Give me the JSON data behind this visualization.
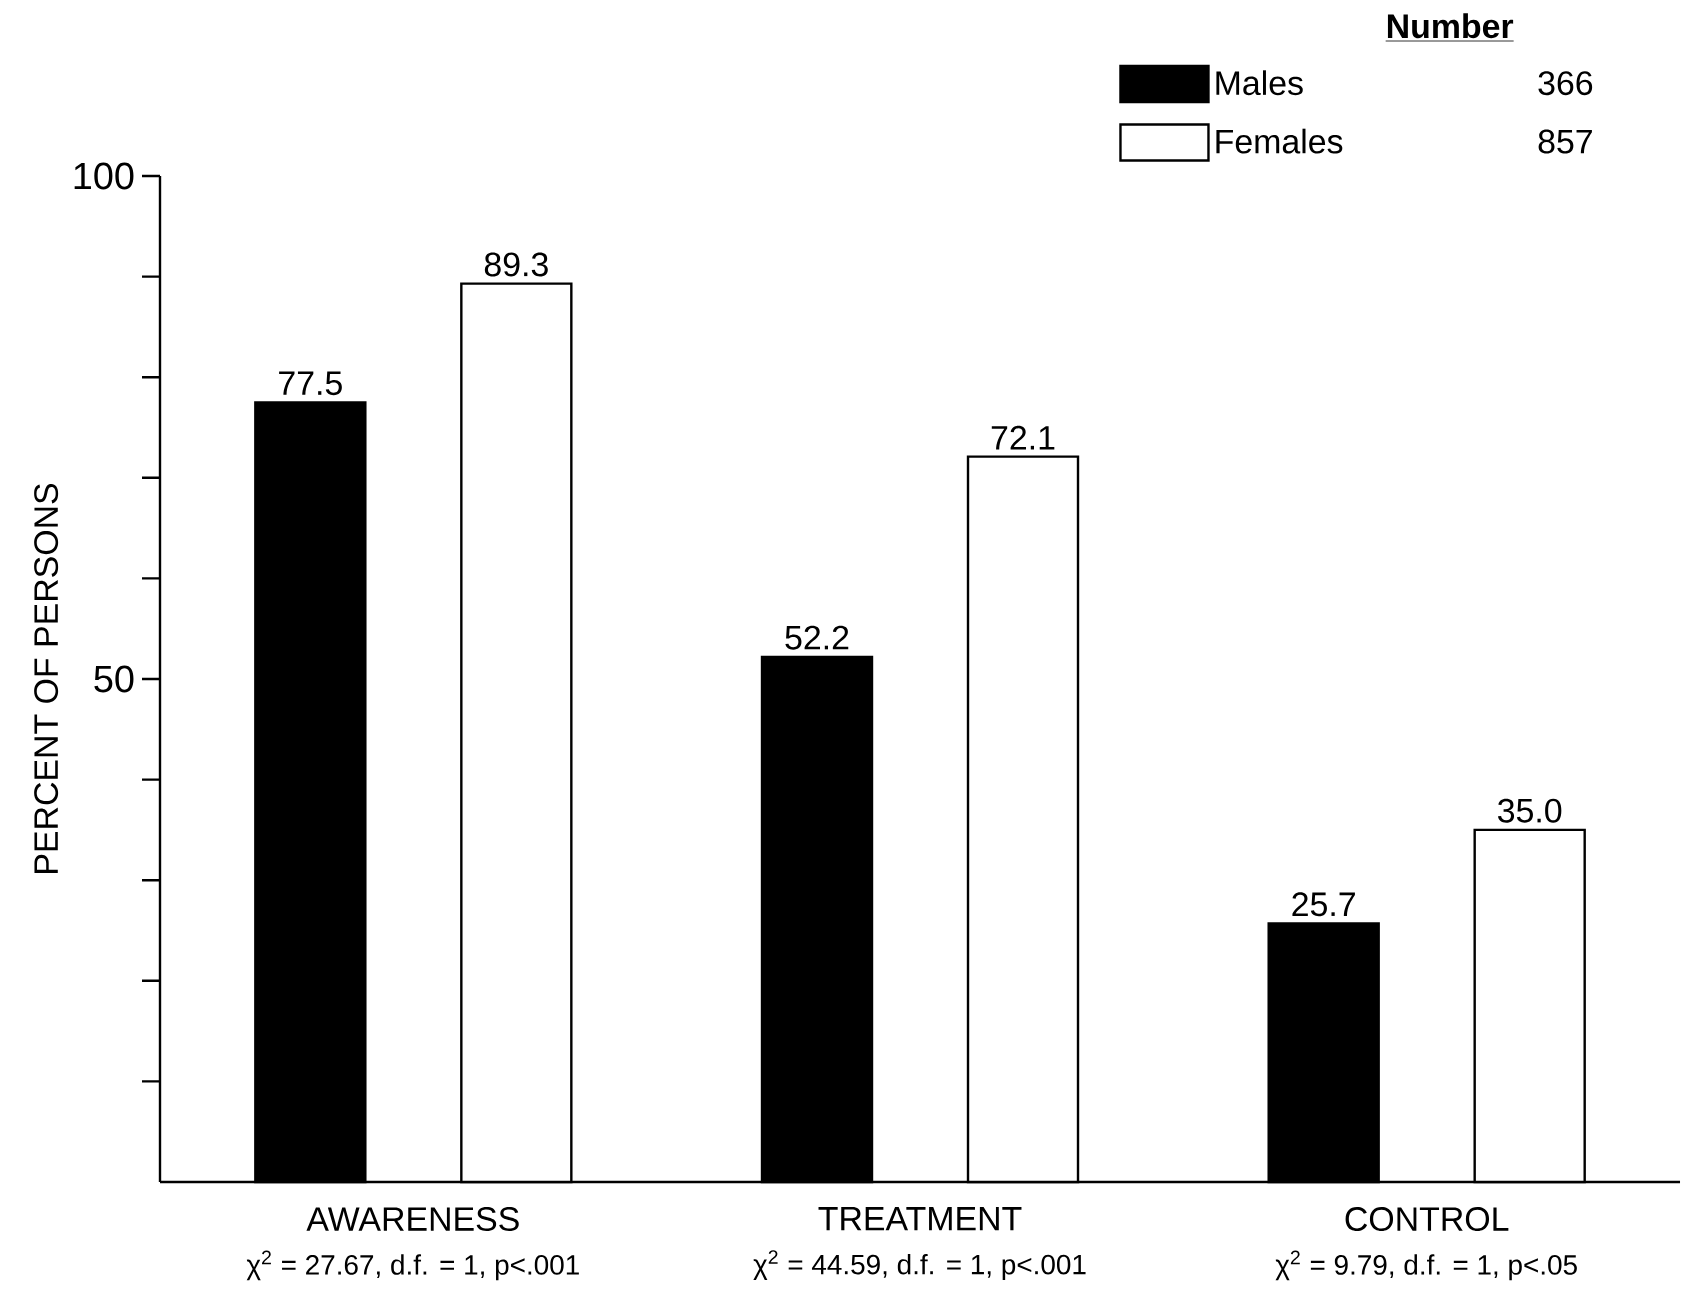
{
  "chart_data": {
    "type": "bar",
    "ylabel": "PERCENT OF PERSONS",
    "categories": [
      "AWARENESS",
      "TREATMENT",
      "CONTROL"
    ],
    "series": [
      {
        "name": "Males",
        "color": "#000000",
        "values": [
          77.5,
          52.2,
          25.7
        ]
      },
      {
        "name": "Females",
        "color": "#ffffff",
        "values": [
          89.3,
          72.1,
          35.0
        ]
      }
    ],
    "value_labels": [
      [
        "77.5",
        "52.2",
        "25.7"
      ],
      [
        "89.3",
        "72.1",
        "35.0"
      ]
    ],
    "ylim": [
      0,
      100
    ],
    "yticks": [
      {
        "value": 10,
        "label": null
      },
      {
        "value": 20,
        "label": null
      },
      {
        "value": 30,
        "label": null
      },
      {
        "value": 40,
        "label": null
      },
      50,
      {
        "value": 60,
        "label": null
      },
      {
        "value": 70,
        "label": null
      },
      {
        "value": 80,
        "label": null
      },
      {
        "value": 90,
        "label": null
      },
      100
    ],
    "legend": "top right",
    "legend_title": "Number",
    "annotations": [
      "χ$^{2}$ = 27.67, d.f. = 1, p<.001",
      "χ$^{2}$ = 44.59, d.f. = 1, p<.001",
      "χ$^{2}$ = 9.79, d.f. = 1, p<.05",
      "366",
      "857"
    ],
    "grid": false
  }
}
